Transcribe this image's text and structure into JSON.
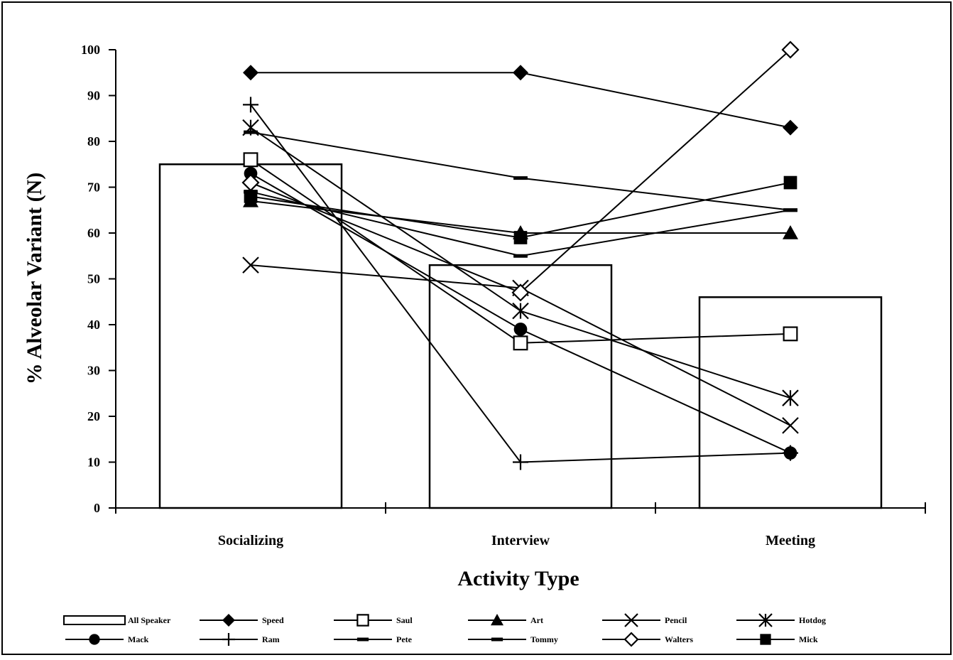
{
  "chart_data": {
    "type": "bar",
    "title": "",
    "xlabel": "Activity Type",
    "ylabel": "% Alveolar Variant (N)",
    "categories": [
      "Socializing",
      "Interview",
      "Meeting"
    ],
    "ylim": [
      0,
      100
    ],
    "yticks": [
      0,
      10,
      20,
      30,
      40,
      50,
      60,
      70,
      80,
      90,
      100
    ],
    "grid": false,
    "legend_position": "bottom",
    "bar_series": {
      "name": "All Speaker",
      "values": [
        75,
        53,
        46
      ]
    },
    "line_series": [
      {
        "name": "Speed",
        "marker": "diamond-filled",
        "values": [
          95,
          95,
          83
        ]
      },
      {
        "name": "Saul",
        "marker": "square-open",
        "values": [
          76,
          36,
          38
        ]
      },
      {
        "name": "Art",
        "marker": "triangle-filled",
        "values": [
          67,
          60,
          60
        ]
      },
      {
        "name": "Pencil",
        "marker": "x",
        "values": [
          53,
          48,
          18
        ]
      },
      {
        "name": "Hotdog",
        "marker": "asterisk",
        "values": [
          83,
          43,
          24
        ]
      },
      {
        "name": "Mack",
        "marker": "circle-filled",
        "values": [
          73,
          39,
          12
        ]
      },
      {
        "name": "Ram",
        "marker": "plus",
        "values": [
          88,
          10,
          12
        ]
      },
      {
        "name": "Pete",
        "marker": "dash",
        "values": [
          69,
          55,
          65
        ]
      },
      {
        "name": "Tommy",
        "marker": "dash",
        "values": [
          82,
          72,
          65
        ]
      },
      {
        "name": "Walters",
        "marker": "diamond-open",
        "values": [
          71,
          47,
          100
        ]
      },
      {
        "name": "Mick",
        "marker": "square-filled",
        "values": [
          68,
          59,
          71
        ]
      }
    ]
  }
}
